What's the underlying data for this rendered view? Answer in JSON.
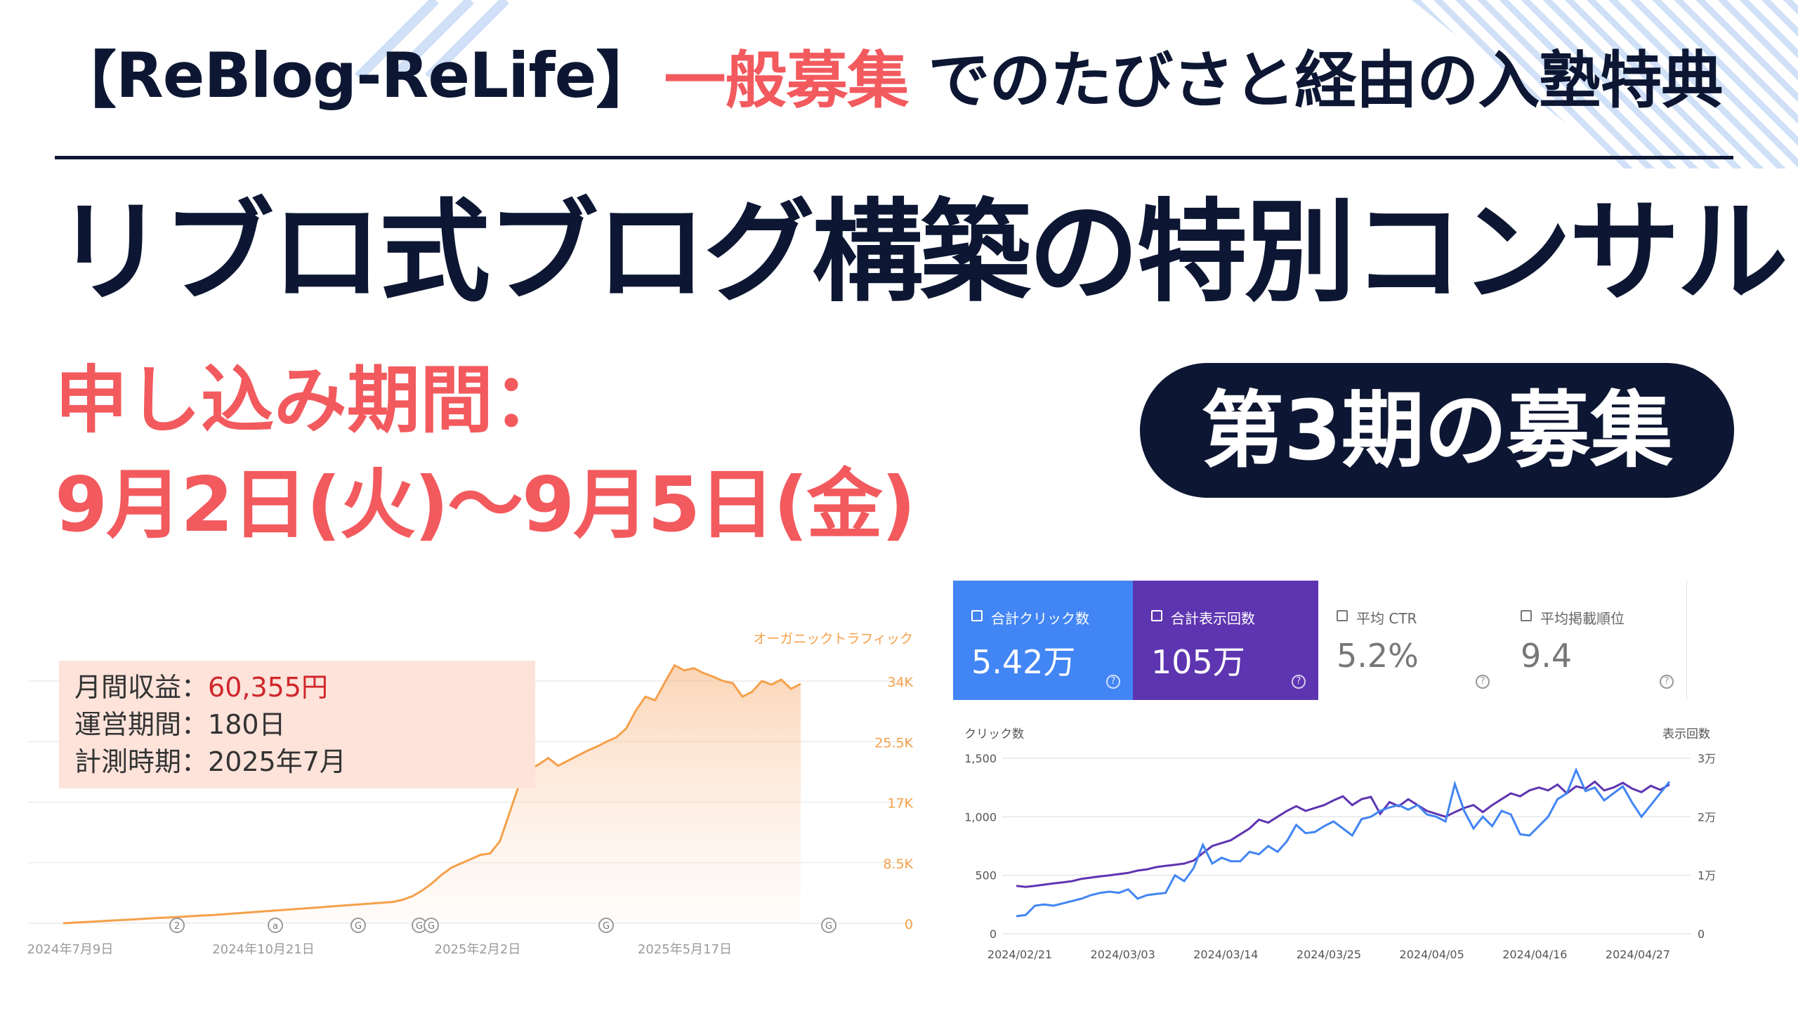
{
  "header": {
    "bracket_open": "【",
    "brand": "ReBlog-ReLife",
    "bracket_close": "】",
    "accent": "一般募集",
    "rest": "でのたびさと経由の入塾特典"
  },
  "title": "リブロ式ブログ構築の特別コンサル",
  "period": {
    "label": "申し込み期間：",
    "dates": "9月2日(火)〜9月5日(金)"
  },
  "cohort_badge": "第3期の募集",
  "colors": {
    "navy": "#0d1733",
    "accent_red": "#f25a5e",
    "orange": "#f5a04a",
    "blue": "#4285f4",
    "purple": "#5e35b1"
  },
  "revenue_box": {
    "rows": [
      {
        "label": "月間収益：",
        "value": "60,355円",
        "highlight": true
      },
      {
        "label": "運営期間：",
        "value": "180日",
        "highlight": false
      },
      {
        "label": "計測時期：",
        "value": "2025年7月",
        "highlight": false
      }
    ]
  },
  "chart_data": [
    {
      "type": "area",
      "series": [
        {
          "name": "オーガニックトラフィック",
          "values": [
            0,
            80,
            150,
            230,
            300,
            380,
            450,
            520,
            600,
            680,
            760,
            820,
            900,
            980,
            1050,
            1120,
            1200,
            1300,
            1400,
            1500,
            1600,
            1700,
            1800,
            1900,
            2000,
            2100,
            2200,
            2300,
            2400,
            2500,
            2600,
            2700,
            2800,
            2900,
            3000,
            3300,
            3800,
            4600,
            5600,
            6800,
            7800,
            8400,
            9000,
            9600,
            9800,
            11500,
            15500,
            19500,
            21500,
            22300,
            23200,
            22100,
            22800,
            23500,
            24200,
            24800,
            25500,
            26100,
            27300,
            29800,
            31800,
            31300,
            33800,
            36200,
            35500,
            35800,
            35100,
            34600,
            34000,
            33700,
            31800,
            32500,
            34000,
            33500,
            34200,
            32900,
            33600
          ]
        }
      ],
      "ylim": [
        0,
        34000
      ],
      "y_ticks": [
        "34K",
        "25.5K",
        "17K",
        "8.5K",
        "0"
      ],
      "x_labels": [
        "2024年7月9日",
        "2024年10月21日",
        "2025年2月2日",
        "2025年5月17日"
      ],
      "markers": [
        "2",
        "a",
        "G",
        "G",
        "G",
        "G",
        "G"
      ],
      "grid": true
    },
    {
      "type": "line",
      "series": [
        {
          "name": "クリック数",
          "color": "#4285f4",
          "values": [
            150,
            160,
            240,
            250,
            240,
            260,
            280,
            300,
            330,
            350,
            360,
            350,
            380,
            300,
            330,
            340,
            350,
            500,
            450,
            560,
            760,
            600,
            650,
            620,
            620,
            700,
            680,
            750,
            700,
            790,
            930,
            860,
            870,
            920,
            960,
            900,
            840,
            980,
            1000,
            1050,
            1080,
            1100,
            1060,
            1100,
            1020,
            1000,
            960,
            1280,
            1050,
            900,
            1000,
            920,
            1050,
            1020,
            850,
            840,
            920,
            1000,
            1150,
            1200,
            1400,
            1220,
            1250,
            1140,
            1200,
            1260,
            1120,
            1000,
            1100,
            1200,
            1300
          ]
        },
        {
          "name": "表示回数",
          "color": "#5e35b1",
          "values": [
            8200,
            8000,
            8200,
            8400,
            8600,
            8800,
            9000,
            9400,
            9600,
            9800,
            10000,
            10200,
            10400,
            10800,
            11000,
            11400,
            11600,
            11800,
            12000,
            12500,
            13800,
            15000,
            15500,
            16000,
            17000,
            18000,
            19500,
            19000,
            20000,
            21000,
            21800,
            21000,
            21500,
            22000,
            22800,
            23500,
            22000,
            23000,
            23400,
            20500,
            22500,
            21800,
            23000,
            22000,
            21000,
            20500,
            20000,
            20800,
            21500,
            22000,
            20800,
            22000,
            23000,
            24000,
            23500,
            24500,
            25000,
            24500,
            25500,
            24000,
            25200,
            24800,
            26000,
            24500,
            25000,
            25800,
            24800,
            24200,
            25300,
            24600,
            25500
          ]
        }
      ],
      "ylim_left": [
        0,
        1500
      ],
      "ylim_right": [
        0,
        30000
      ],
      "y_left_label": "クリック数",
      "y_right_label": "表示回数",
      "y_left_ticks": [
        "1,500",
        "1,000",
        "500",
        "0"
      ],
      "y_right_ticks": [
        "3万",
        "2万",
        "1万",
        "0"
      ],
      "x_labels": [
        "2024/02/21",
        "2024/03/03",
        "2024/03/14",
        "2024/03/25",
        "2024/04/05",
        "2024/04/16",
        "2024/04/27"
      ],
      "grid": true
    }
  ],
  "traffic_chart": {
    "legend": "オーガニックトラフィック"
  },
  "gsc": {
    "cards": [
      {
        "label": "合計クリック数",
        "value": "5.42万",
        "checked": true,
        "bg": "#4285f4"
      },
      {
        "label": "合計表示回数",
        "value": "105万",
        "checked": true,
        "bg": "#5e35b1"
      },
      {
        "label": "平均 CTR",
        "value": "5.2%",
        "checked": false,
        "bg": "#ffffff"
      },
      {
        "label": "平均掲載順位",
        "value": "9.4",
        "checked": false,
        "bg": "#ffffff"
      }
    ],
    "help_glyph": "?"
  }
}
